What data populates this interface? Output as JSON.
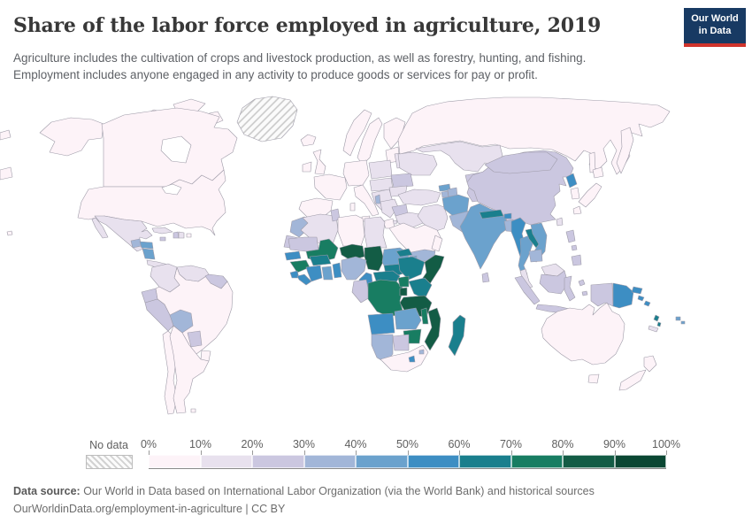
{
  "header": {
    "title": "Share of the labor force employed in agriculture, 2019",
    "subtitle": "Agriculture includes the cultivation of crops and livestock production, as well as forestry, hunting, and fishing.\nEmployment includes anyone engaged in any activity to produce goods or services for pay or profit.",
    "logo": {
      "line1": "Our World",
      "line2": "in Data",
      "bg_color": "#183a63",
      "accent_color": "#d0342c"
    }
  },
  "legend": {
    "no_data_label": "No data",
    "tick_labels": [
      "0%",
      "10%",
      "20%",
      "30%",
      "40%",
      "50%",
      "60%",
      "70%",
      "80%",
      "90%",
      "100%"
    ]
  },
  "footer": {
    "source_label": "Data source:",
    "source_text": " Our World in Data based on International Labor Organization (via the World Bank) and historical sources",
    "note_text": "OurWorldinData.org/employment-in-agriculture | CC BY"
  },
  "map": {
    "stroke_color": "#9e9ba8",
    "sea_color": "#ffffff"
  },
  "chart_data": {
    "type": "heatmap",
    "subtype": "choropleth-world-map",
    "title": "Share of the labor force employed in agriculture, 2019",
    "unit": "% of labor force",
    "legend_position": "bottom",
    "bins": [
      {
        "label": "0–10%",
        "color": "#fdf3f8"
      },
      {
        "label": "10–20%",
        "color": "#e8e1ee"
      },
      {
        "label": "20–30%",
        "color": "#cbc7e0"
      },
      {
        "label": "30–40%",
        "color": "#a2b6d8"
      },
      {
        "label": "40–50%",
        "color": "#6ba2cd"
      },
      {
        "label": "50–60%",
        "color": "#3d8ec3"
      },
      {
        "label": "60–70%",
        "color": "#1a7f8d"
      },
      {
        "label": "70–80%",
        "color": "#187d62"
      },
      {
        "label": "80–90%",
        "color": "#135c45"
      },
      {
        "label": "90–100%",
        "color": "#0b4733"
      }
    ],
    "no_data": {
      "label": "No data",
      "pattern": "diagonal-hatch"
    },
    "regions": [
      {
        "id": "greenland",
        "name": "Greenland",
        "bin": "no-data"
      },
      {
        "id": "canada",
        "name": "Canada",
        "bin": 1
      },
      {
        "id": "usa",
        "name": "United States",
        "bin": 1
      },
      {
        "id": "mexico",
        "name": "Mexico",
        "bin": 2
      },
      {
        "id": "guatemala",
        "name": "Guatemala",
        "bin": 4
      },
      {
        "id": "honduras",
        "name": "Honduras",
        "bin": 5
      },
      {
        "id": "nicaragua",
        "name": "Nicaragua",
        "bin": 5
      },
      {
        "id": "costa-rica-panama",
        "name": "Costa Rica & Panama",
        "bin": 2
      },
      {
        "id": "cuba",
        "name": "Cuba",
        "bin": 2
      },
      {
        "id": "jamaica",
        "name": "Jamaica",
        "bin": 3
      },
      {
        "id": "haiti",
        "name": "Haiti",
        "bin": 3
      },
      {
        "id": "dominican-republic",
        "name": "Dominican Republic",
        "bin": 2
      },
      {
        "id": "puerto-rico",
        "name": "Puerto Rico",
        "bin": 1
      },
      {
        "id": "colombia",
        "name": "Colombia",
        "bin": 2
      },
      {
        "id": "venezuela",
        "name": "Venezuela",
        "bin": 2
      },
      {
        "id": "guyana-suriname",
        "name": "Guyana & Suriname",
        "bin": 3
      },
      {
        "id": "ecuador",
        "name": "Ecuador",
        "bin": 3
      },
      {
        "id": "peru",
        "name": "Peru",
        "bin": 3
      },
      {
        "id": "bolivia",
        "name": "Bolivia",
        "bin": 4
      },
      {
        "id": "brazil",
        "name": "Brazil",
        "bin": 1
      },
      {
        "id": "paraguay",
        "name": "Paraguay",
        "bin": 3
      },
      {
        "id": "uruguay",
        "name": "Uruguay",
        "bin": 1
      },
      {
        "id": "argentina",
        "name": "Argentina",
        "bin": 1
      },
      {
        "id": "chile",
        "name": "Chile",
        "bin": 1
      },
      {
        "id": "falkland",
        "name": "Falkland Islands",
        "bin": 1
      },
      {
        "id": "iceland",
        "name": "Iceland",
        "bin": 1
      },
      {
        "id": "ireland",
        "name": "Ireland",
        "bin": 1
      },
      {
        "id": "uk",
        "name": "United Kingdom",
        "bin": 1
      },
      {
        "id": "norway",
        "name": "Norway",
        "bin": 1
      },
      {
        "id": "sweden",
        "name": "Sweden",
        "bin": 1
      },
      {
        "id": "finland",
        "name": "Finland",
        "bin": 1
      },
      {
        "id": "denmark",
        "name": "Denmark",
        "bin": 1
      },
      {
        "id": "baltics",
        "name": "Baltic states",
        "bin": 1
      },
      {
        "id": "belarus",
        "name": "Belarus",
        "bin": 2
      },
      {
        "id": "poland",
        "name": "Poland",
        "bin": 2
      },
      {
        "id": "germany-central",
        "name": "Germany & Central Europe",
        "bin": 1
      },
      {
        "id": "france",
        "name": "France",
        "bin": 1
      },
      {
        "id": "iberia",
        "name": "Spain & Portugal",
        "bin": 1
      },
      {
        "id": "italy",
        "name": "Italy",
        "bin": 1
      },
      {
        "id": "czech-hungary",
        "name": "Czechia, Slovakia & Hungary",
        "bin": 2
      },
      {
        "id": "ukraine",
        "name": "Ukraine",
        "bin": 2
      },
      {
        "id": "romania",
        "name": "Romania",
        "bin": 3
      },
      {
        "id": "balkans",
        "name": "Western Balkans",
        "bin": 2
      },
      {
        "id": "bulgaria",
        "name": "Bulgaria",
        "bin": 2
      },
      {
        "id": "albania",
        "name": "Albania",
        "bin": 4
      },
      {
        "id": "greece",
        "name": "Greece",
        "bin": 2
      },
      {
        "id": "russia",
        "name": "Russia",
        "bin": 1
      },
      {
        "id": "kazakhstan",
        "name": "Kazakhstan",
        "bin": 2
      },
      {
        "id": "uzbekistan",
        "name": "Uzbekistan",
        "bin": 3
      },
      {
        "id": "turkmenistan",
        "name": "Turkmenistan",
        "bin": 3
      },
      {
        "id": "kyrgyzstan",
        "name": "Kyrgyzstan",
        "bin": 4
      },
      {
        "id": "tajikistan",
        "name": "Tajikistan",
        "bin": 5
      },
      {
        "id": "georgia",
        "name": "Georgia",
        "bin": 5
      },
      {
        "id": "azerbaijan",
        "name": "Azerbaijan",
        "bin": 4
      },
      {
        "id": "armenia",
        "name": "Armenia",
        "bin": 4
      },
      {
        "id": "turkey",
        "name": "Turkey",
        "bin": 2
      },
      {
        "id": "syria",
        "name": "Syria",
        "bin": 3
      },
      {
        "id": "iraq",
        "name": "Iraq",
        "bin": 2
      },
      {
        "id": "iran",
        "name": "Iran",
        "bin": 2
      },
      {
        "id": "jordan-israel",
        "name": "Jordan & Israel",
        "bin": 1
      },
      {
        "id": "saudi-arabia",
        "name": "Saudi Arabia",
        "bin": 1
      },
      {
        "id": "yemen",
        "name": "Yemen",
        "bin": 4
      },
      {
        "id": "oman",
        "name": "Oman",
        "bin": 1
      },
      {
        "id": "afghanistan",
        "name": "Afghanistan",
        "bin": 5
      },
      {
        "id": "pakistan",
        "name": "Pakistan",
        "bin": 4
      },
      {
        "id": "india",
        "name": "India",
        "bin": 5
      },
      {
        "id": "nepal",
        "name": "Nepal",
        "bin": 7
      },
      {
        "id": "bhutan",
        "name": "Bhutan",
        "bin": 6
      },
      {
        "id": "bangladesh",
        "name": "Bangladesh",
        "bin": 4
      },
      {
        "id": "sri-lanka",
        "name": "Sri Lanka",
        "bin": 3
      },
      {
        "id": "myanmar",
        "name": "Myanmar",
        "bin": 6
      },
      {
        "id": "thailand",
        "name": "Thailand",
        "bin": 5
      },
      {
        "id": "laos",
        "name": "Laos",
        "bin": 7
      },
      {
        "id": "vietnam",
        "name": "Vietnam",
        "bin": 5
      },
      {
        "id": "cambodia",
        "name": "Cambodia",
        "bin": 4
      },
      {
        "id": "malaysia",
        "name": "Malaysia",
        "bin": 2
      },
      {
        "id": "china",
        "name": "China",
        "bin": 3
      },
      {
        "id": "mongolia",
        "name": "Mongolia",
        "bin": 3
      },
      {
        "id": "north-korea",
        "name": "North Korea",
        "bin": 6
      },
      {
        "id": "south-korea",
        "name": "South Korea",
        "bin": 1
      },
      {
        "id": "japan",
        "name": "Japan",
        "bin": 1
      },
      {
        "id": "taiwan",
        "name": "Taiwan",
        "bin": 2
      },
      {
        "id": "philippines",
        "name": "Philippines",
        "bin": 3
      },
      {
        "id": "indonesia",
        "name": "Indonesia",
        "bin": 3
      },
      {
        "id": "timor",
        "name": "Timor-Leste",
        "bin": 3
      },
      {
        "id": "png",
        "name": "Papua New Guinea",
        "bin": 6
      },
      {
        "id": "solomon-islands",
        "name": "Solomon Islands",
        "bin": 6
      },
      {
        "id": "vanuatu",
        "name": "Vanuatu",
        "bin": 7
      },
      {
        "id": "fiji",
        "name": "Fiji",
        "bin": 5
      },
      {
        "id": "new-caledonia",
        "name": "New Caledonia",
        "bin": 2
      },
      {
        "id": "australia",
        "name": "Australia",
        "bin": 1
      },
      {
        "id": "new-zealand",
        "name": "New Zealand",
        "bin": 1
      },
      {
        "id": "morocco",
        "name": "Morocco",
        "bin": 4
      },
      {
        "id": "western-sahara",
        "name": "Western Sahara",
        "bin": 3
      },
      {
        "id": "algeria",
        "name": "Algeria",
        "bin": 2
      },
      {
        "id": "tunisia",
        "name": "Tunisia",
        "bin": 3
      },
      {
        "id": "libya",
        "name": "Libya",
        "bin": 1
      },
      {
        "id": "egypt",
        "name": "Egypt",
        "bin": 2
      },
      {
        "id": "mauritania",
        "name": "Mauritania",
        "bin": 3
      },
      {
        "id": "mali",
        "name": "Mali",
        "bin": 8
      },
      {
        "id": "niger",
        "name": "Niger",
        "bin": 9
      },
      {
        "id": "chad",
        "name": "Chad",
        "bin": 9
      },
      {
        "id": "sudan",
        "name": "Sudan",
        "bin": 5
      },
      {
        "id": "south-sudan",
        "name": "South Sudan",
        "bin": 7
      },
      {
        "id": "eritrea",
        "name": "Eritrea",
        "bin": 7
      },
      {
        "id": "djibouti",
        "name": "Djibouti",
        "bin": 5
      },
      {
        "id": "ethiopia",
        "name": "Ethiopia",
        "bin": 7
      },
      {
        "id": "somalia",
        "name": "Somalia",
        "bin": 9
      },
      {
        "id": "senegal",
        "name": "Senegal",
        "bin": 6
      },
      {
        "id": "guinea",
        "name": "Guinea",
        "bin": 8
      },
      {
        "id": "sierra-leone",
        "name": "Sierra Leone",
        "bin": 6
      },
      {
        "id": "liberia",
        "name": "Liberia",
        "bin": 6
      },
      {
        "id": "ivory-coast",
        "name": "Cote d'Ivoire",
        "bin": 6
      },
      {
        "id": "ghana",
        "name": "Ghana",
        "bin": 5
      },
      {
        "id": "togo-benin",
        "name": "Togo & Benin",
        "bin": 6
      },
      {
        "id": "burkina-faso",
        "name": "Burkina Faso",
        "bin": 7
      },
      {
        "id": "nigeria",
        "name": "Nigeria",
        "bin": 4
      },
      {
        "id": "cameroon",
        "name": "Cameroon",
        "bin": 6
      },
      {
        "id": "car",
        "name": "Central African Republic",
        "bin": 7
      },
      {
        "id": "gabon-congo",
        "name": "Gabon & Congo",
        "bin": 3
      },
      {
        "id": "dr-congo",
        "name": "DR Congo",
        "bin": 8
      },
      {
        "id": "uganda",
        "name": "Uganda",
        "bin": 8
      },
      {
        "id": "kenya",
        "name": "Kenya",
        "bin": 7
      },
      {
        "id": "rwanda-burundi",
        "name": "Rwanda & Burundi",
        "bin": 9
      },
      {
        "id": "tanzania",
        "name": "Tanzania",
        "bin": 9
      },
      {
        "id": "angola",
        "name": "Angola",
        "bin": 6
      },
      {
        "id": "zambia",
        "name": "Zambia",
        "bin": 5
      },
      {
        "id": "malawi",
        "name": "Malawi",
        "bin": 8
      },
      {
        "id": "mozambique",
        "name": "Mozambique",
        "bin": 9
      },
      {
        "id": "zimbabwe",
        "name": "Zimbabwe",
        "bin": 8
      },
      {
        "id": "botswana",
        "name": "Botswana",
        "bin": 3
      },
      {
        "id": "namibia",
        "name": "Namibia",
        "bin": 4
      },
      {
        "id": "south-africa",
        "name": "South Africa",
        "bin": 1
      },
      {
        "id": "lesotho",
        "name": "Lesotho",
        "bin": 6
      },
      {
        "id": "eswatini",
        "name": "Eswatini",
        "bin": 4
      },
      {
        "id": "madagascar",
        "name": "Madagascar",
        "bin": 7
      }
    ]
  }
}
